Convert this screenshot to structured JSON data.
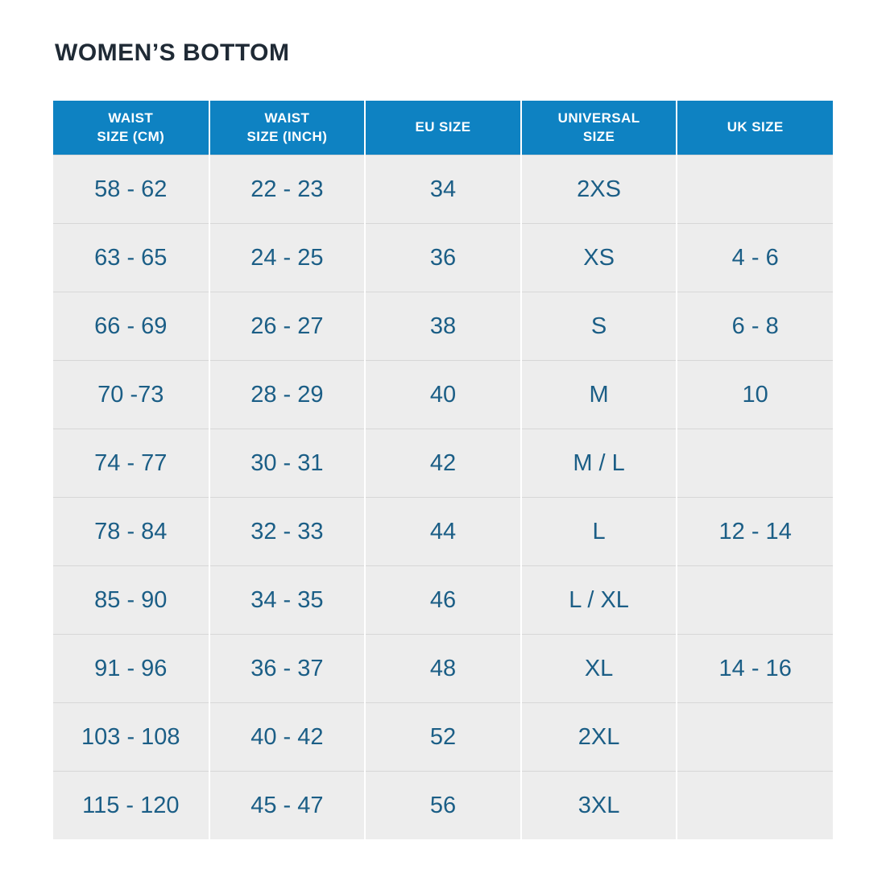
{
  "title": "WOMEN’S BOTTOM",
  "colors": {
    "page_bg": "#ffffff",
    "title_text": "#1f2a35",
    "header_bg": "#0e82c2",
    "header_text": "#ffffff",
    "cell_bg": "#ededed",
    "cell_text": "#1b5e86",
    "row_divider": "#d7d7d7",
    "col_divider": "#ffffff"
  },
  "table": {
    "columns": [
      "WAIST\nSIZE (CM)",
      "WAIST\nSIZE (INCH)",
      "EU SIZE",
      "UNIVERSAL\nSIZE",
      "UK SIZE"
    ],
    "rows": [
      [
        "58 - 62",
        "22 - 23",
        "34",
        "2XS",
        ""
      ],
      [
        "63 - 65",
        "24 - 25",
        "36",
        "XS",
        "4 - 6"
      ],
      [
        "66 - 69",
        "26 - 27",
        "38",
        "S",
        "6 - 8"
      ],
      [
        "70 -73",
        "28 - 29",
        "40",
        "M",
        "10"
      ],
      [
        "74 - 77",
        "30 - 31",
        "42",
        "M / L",
        ""
      ],
      [
        "78 - 84",
        "32 - 33",
        "44",
        "L",
        "12 - 14"
      ],
      [
        "85 - 90",
        "34 - 35",
        "46",
        "L / XL",
        ""
      ],
      [
        "91 - 96",
        "36 - 37",
        "48",
        "XL",
        "14 - 16"
      ],
      [
        "103 - 108",
        "40 - 42",
        "52",
        "2XL",
        ""
      ],
      [
        "115 - 120",
        "45 - 47",
        "56",
        "3XL",
        ""
      ]
    ]
  }
}
